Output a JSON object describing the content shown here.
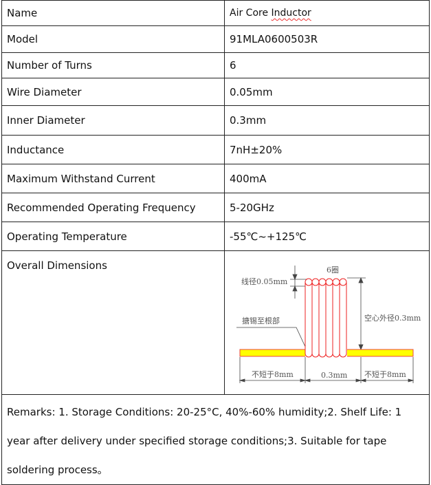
{
  "rows": [
    {
      "label": "Name",
      "value": "Air Core ",
      "value_underlined": "Inductor"
    },
    {
      "label": "Model",
      "value": "91MLA0600503R"
    },
    {
      "label": "Number of Turns",
      "value": "6"
    },
    {
      "label": "Wire Diameter",
      "value": "0.05mm"
    },
    {
      "label": "Inner Diameter",
      "value": "0.3mm"
    },
    {
      "label": "Inductance",
      "value": "7nH±20%"
    },
    {
      "label": "Maximum Withstand Current",
      "value": "400mA"
    },
    {
      "label": "Recommended Operating Frequency",
      "value": "5-20GHz"
    },
    {
      "label": "Operating Temperature",
      "value": "-55℃~+125℃"
    },
    {
      "label": "Overall Dimensions"
    }
  ],
  "diagram": {
    "turns_label": "6圈",
    "wire_diameter_label": "线径0.05mm",
    "outer_diameter_label": "空心外径0.3mm",
    "tinning_label": "搪锡至根部",
    "lead_left_label": "不短于8mm",
    "coil_length_label": "0.3mm",
    "lead_right_label": "不短于8mm",
    "colors": {
      "coil": "#ee2222",
      "lead_fill": "#ffff00",
      "lead_stroke": "#ee4444",
      "dim": "#444444"
    }
  },
  "remarks": "Remarks: 1. Storage Conditions: 20-25°C, 40%-60% humidity;2. Shelf Life: 1 year after delivery under specified storage conditions;3. Suitable for tape soldering process。"
}
